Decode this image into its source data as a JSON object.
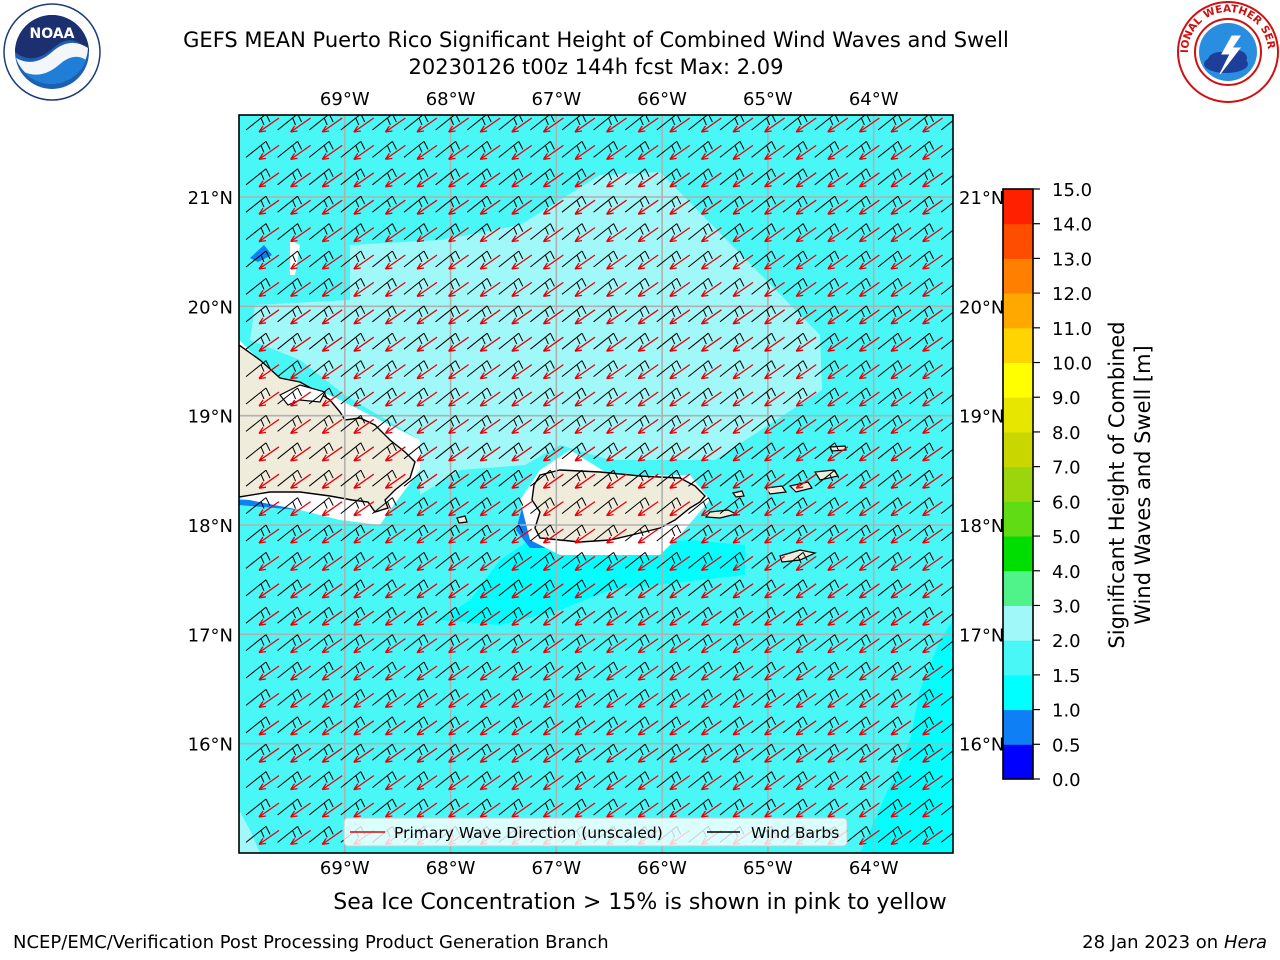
{
  "header": {
    "title_line1": "GEFS MEAN Puerto Rico Significant Height of Combined Wind Waves and Swell",
    "title_line2": "20230126 t00z 144h fcst   Max: 2.09"
  },
  "logos": {
    "left": {
      "icon": "noaa-logo",
      "text": "NOAA"
    },
    "right": {
      "icon": "nws-logo",
      "text": "NATIONAL WEATHER SERVICE"
    }
  },
  "map": {
    "lon_labels": [
      "69°W",
      "68°W",
      "67°W",
      "66°W",
      "65°W",
      "64°W"
    ],
    "lat_labels": [
      "21°N",
      "20°N",
      "19°N",
      "18°N",
      "17°N",
      "16°N"
    ],
    "extent": {
      "lon_min": -70.0,
      "lon_max": -63.25,
      "lat_min": 15.0,
      "lat_max": 21.75
    },
    "wave_direction_deg": 230,
    "colors": {
      "land": "#efecdc",
      "grid": "#b0b0b0",
      "wave_arrow": "#e8000b",
      "wind_barb": "#000000"
    }
  },
  "legend": {
    "wave_label": "Primary Wave Direction (unscaled)",
    "wind_label": "Wind Barbs"
  },
  "colorbar": {
    "label_line1": "Significant Height of Combined",
    "label_line2": "Wind Waves and Swell [m]",
    "ticks": [
      "0.0",
      "0.5",
      "1.0",
      "1.5",
      "2.0",
      "3.0",
      "4.0",
      "5.0",
      "6.0",
      "7.0",
      "8.0",
      "9.0",
      "10.0",
      "11.0",
      "12.0",
      "13.0",
      "14.0",
      "15.0"
    ],
    "colors": [
      "#0000ff",
      "#0f7ff5",
      "#00ffff",
      "#4af7f7",
      "#a0f8f8",
      "#50f28a",
      "#00dd00",
      "#5fdc13",
      "#9bd60c",
      "#c9d600",
      "#e6e600",
      "#ffff00",
      "#ffd400",
      "#ffa900",
      "#ff7f00",
      "#ff4d00",
      "#ff2000"
    ]
  },
  "bottom_note": "Sea Ice Concentration > 15% is shown in pink to yellow",
  "footer": {
    "left": "NCEP/EMC/Verification Post Processing Product Generation Branch",
    "right_date": "28 Jan 2023 on ",
    "right_host": "Hera"
  }
}
